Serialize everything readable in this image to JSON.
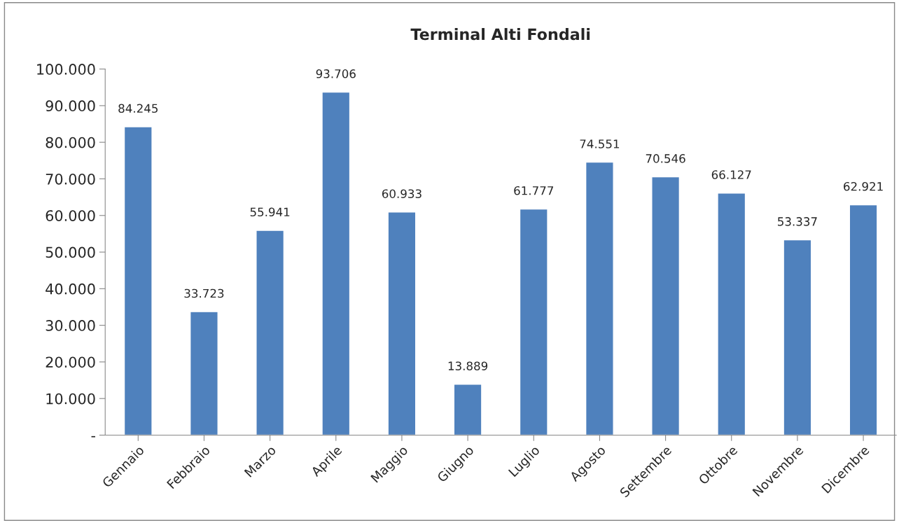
{
  "chart_data": {
    "type": "bar",
    "title": "Terminal Alti Fondali",
    "categories": [
      "Gennaio",
      "Febbraio",
      "Marzo",
      "Aprile",
      "Maggio",
      "Giugno",
      "Luglio",
      "Agosto",
      "Settembre",
      "Ottobre",
      "Novembre",
      "Dicembre"
    ],
    "values": [
      84245,
      33723,
      55941,
      93706,
      60933,
      13889,
      61777,
      74551,
      70546,
      66127,
      53337,
      62921
    ],
    "value_labels": [
      "84.245",
      "33.723",
      "55.941",
      "93.706",
      "60.933",
      "13.889",
      "61.777",
      "74.551",
      "70.546",
      "66.127",
      "53.337",
      "62.921"
    ],
    "color": "#4f81bd",
    "ylim": [
      0,
      100000
    ],
    "yticks": [
      {
        "value": 0,
        "label": "-"
      },
      {
        "value": 10000,
        "label": "10.000"
      },
      {
        "value": 20000,
        "label": "20.000"
      },
      {
        "value": 30000,
        "label": "30.000"
      },
      {
        "value": 40000,
        "label": "40.000"
      },
      {
        "value": 50000,
        "label": "50.000"
      },
      {
        "value": 60000,
        "label": "60.000"
      },
      {
        "value": 70000,
        "label": "70.000"
      },
      {
        "value": 80000,
        "label": "80.000"
      },
      {
        "value": 90000,
        "label": "90.000"
      },
      {
        "value": 100000,
        "label": "100.000"
      }
    ],
    "grid": false,
    "legend": false
  }
}
